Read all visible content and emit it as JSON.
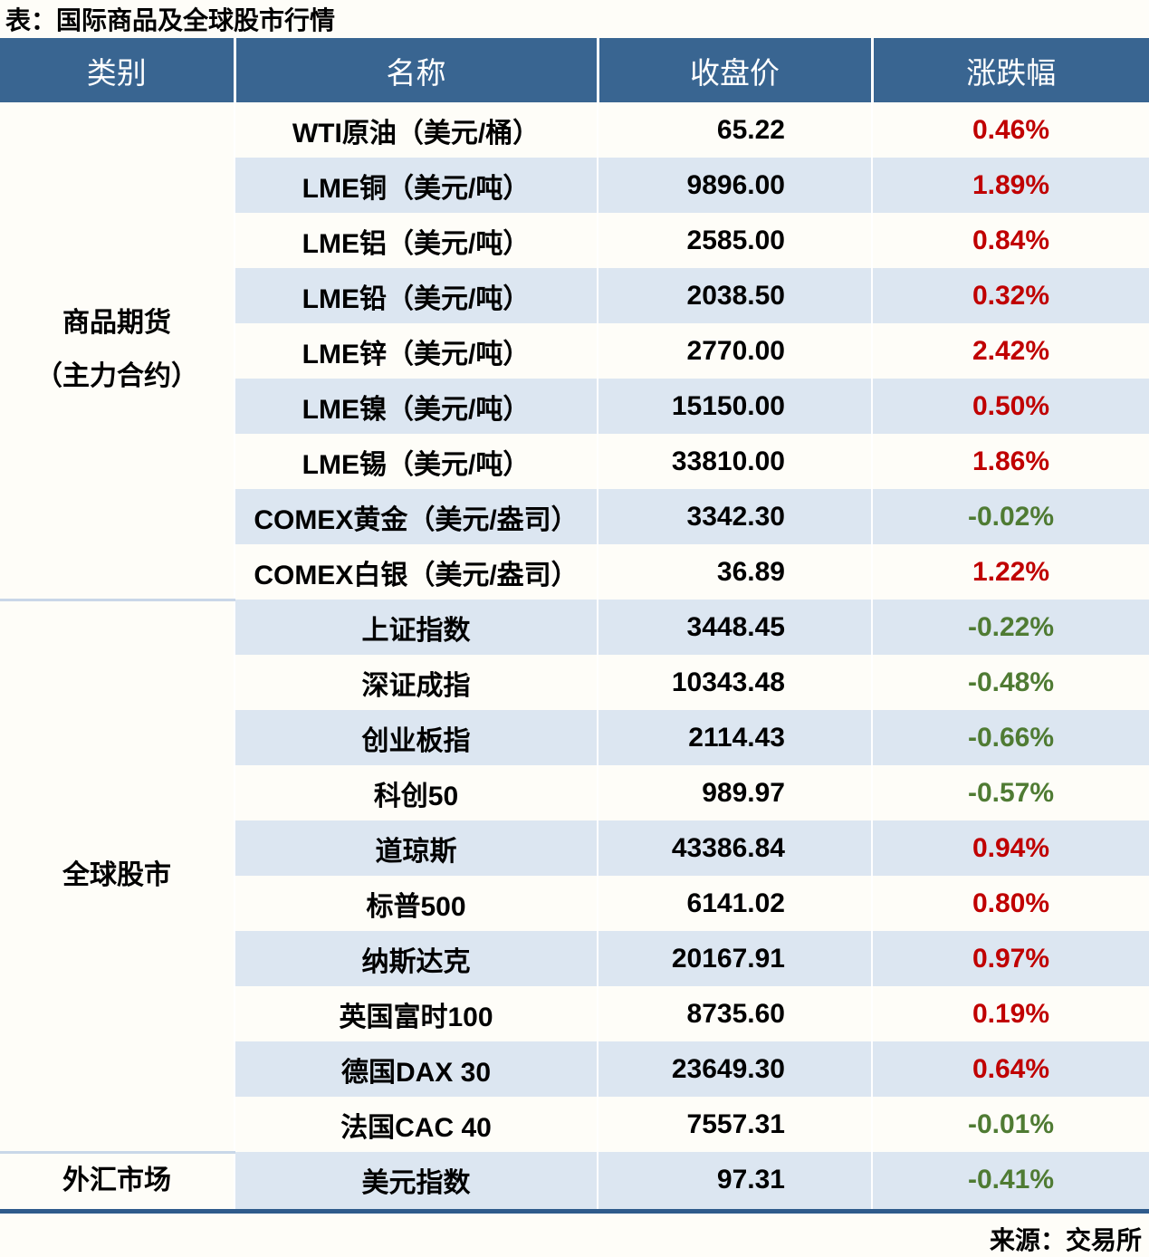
{
  "title": "表：国际商品及全球股市行情",
  "source": "来源：交易所",
  "colors": {
    "header_bg": "#396591",
    "row_alt_bg": "#DCE6F1",
    "up": "#C00000",
    "down": "#4F7B33",
    "bottom_border": "#2F5B8C"
  },
  "table": {
    "headers": [
      "类别",
      "名称",
      "收盘价",
      "涨跌幅"
    ],
    "sections": [
      {
        "category": "商品期货\n（主力合约）",
        "rows": [
          {
            "name": "WTI原油（美元/桶）",
            "close": "65.22",
            "change": "0.46%"
          },
          {
            "name": "LME铜（美元/吨）",
            "close": "9896.00",
            "change": "1.89%"
          },
          {
            "name": "LME铝（美元/吨）",
            "close": "2585.00",
            "change": "0.84%"
          },
          {
            "name": "LME铅（美元/吨）",
            "close": "2038.50",
            "change": "0.32%"
          },
          {
            "name": "LME锌（美元/吨）",
            "close": "2770.00",
            "change": "2.42%"
          },
          {
            "name": "LME镍（美元/吨）",
            "close": "15150.00",
            "change": "0.50%"
          },
          {
            "name": "LME锡（美元/吨）",
            "close": "33810.00",
            "change": "1.86%"
          },
          {
            "name": "COMEX黄金（美元/盎司）",
            "close": "3342.30",
            "change": "-0.02%"
          },
          {
            "name": "COMEX白银（美元/盎司）",
            "close": "36.89",
            "change": "1.22%"
          }
        ]
      },
      {
        "category": "全球股市",
        "rows": [
          {
            "name": "上证指数",
            "close": "3448.45",
            "change": "-0.22%"
          },
          {
            "name": "深证成指",
            "close": "10343.48",
            "change": "-0.48%"
          },
          {
            "name": "创业板指",
            "close": "2114.43",
            "change": "-0.66%"
          },
          {
            "name": "科创50",
            "close": "989.97",
            "change": "-0.57%"
          },
          {
            "name": "道琼斯",
            "close": "43386.84",
            "change": "0.94%"
          },
          {
            "name": "标普500",
            "close": "6141.02",
            "change": "0.80%"
          },
          {
            "name": "纳斯达克",
            "close": "20167.91",
            "change": "0.97%"
          },
          {
            "name": "英国富时100",
            "close": "8735.60",
            "change": "0.19%"
          },
          {
            "name": "德国DAX 30",
            "close": "23649.30",
            "change": "0.64%"
          },
          {
            "name": "法国CAC 40",
            "close": "7557.31",
            "change": "-0.01%"
          }
        ]
      },
      {
        "category": "外汇市场",
        "rows": [
          {
            "name": "美元指数",
            "close": "97.31",
            "change": "-0.41%"
          }
        ]
      }
    ]
  }
}
